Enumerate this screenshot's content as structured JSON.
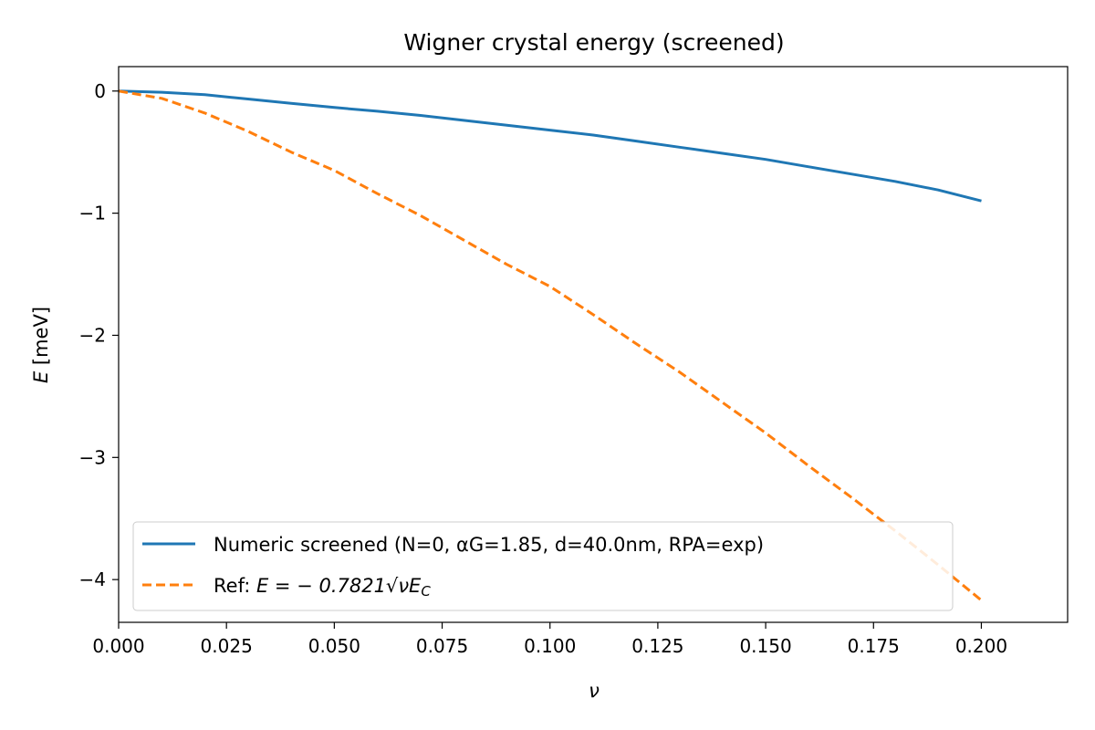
{
  "chart_data": {
    "type": "line",
    "title": "Wigner crystal energy (screened)",
    "xlabel": "ν",
    "ylabel_var": "E",
    "ylabel_unit": " [meV]",
    "xlim": [
      0.0,
      0.22
    ],
    "ylim": [
      -4.35,
      0.2
    ],
    "x_ticks": [
      0.0,
      0.025,
      0.05,
      0.075,
      0.1,
      0.125,
      0.15,
      0.175,
      0.2
    ],
    "x_tick_labels": [
      "0.000",
      "0.025",
      "0.050",
      "0.075",
      "0.100",
      "0.125",
      "0.150",
      "0.175",
      "0.200"
    ],
    "y_ticks": [
      0,
      -1,
      -2,
      -3,
      -4
    ],
    "y_tick_labels": [
      "0",
      "−1",
      "−2",
      "−3",
      "−4"
    ],
    "grid": false,
    "legend_position": "lower-left",
    "series": [
      {
        "name": "Numeric screened (N=0, αG=1.85, d=40.0nm, RPA=exp)",
        "color": "#1f77b4",
        "style": "solid",
        "x": [
          0.0,
          0.01,
          0.02,
          0.03,
          0.04,
          0.05,
          0.06,
          0.07,
          0.08,
          0.09,
          0.1,
          0.11,
          0.12,
          0.13,
          0.14,
          0.15,
          0.16,
          0.17,
          0.18,
          0.19,
          0.2
        ],
        "y": [
          0.0,
          -0.01,
          -0.03,
          -0.065,
          -0.1,
          -0.135,
          -0.165,
          -0.2,
          -0.24,
          -0.28,
          -0.32,
          -0.36,
          -0.41,
          -0.46,
          -0.51,
          -0.56,
          -0.62,
          -0.68,
          -0.74,
          -0.81,
          -0.9
        ]
      },
      {
        "name_prefix": "Ref: ",
        "name_math": "E = − 0.7821√νE",
        "name_sub": "C",
        "color": "#ff7f0e",
        "style": "dashed",
        "x": [
          0.0,
          0.01,
          0.02,
          0.03,
          0.04,
          0.05,
          0.06,
          0.07,
          0.08,
          0.09,
          0.1,
          0.11,
          0.12,
          0.13,
          0.14,
          0.15,
          0.16,
          0.17,
          0.18,
          0.19,
          0.2
        ],
        "y": [
          0.0,
          -0.06,
          -0.18,
          -0.33,
          -0.5,
          -0.65,
          -0.84,
          -1.02,
          -1.22,
          -1.42,
          -1.6,
          -1.83,
          -2.07,
          -2.3,
          -2.55,
          -2.8,
          -3.07,
          -3.33,
          -3.6,
          -3.88,
          -4.17
        ]
      }
    ]
  }
}
